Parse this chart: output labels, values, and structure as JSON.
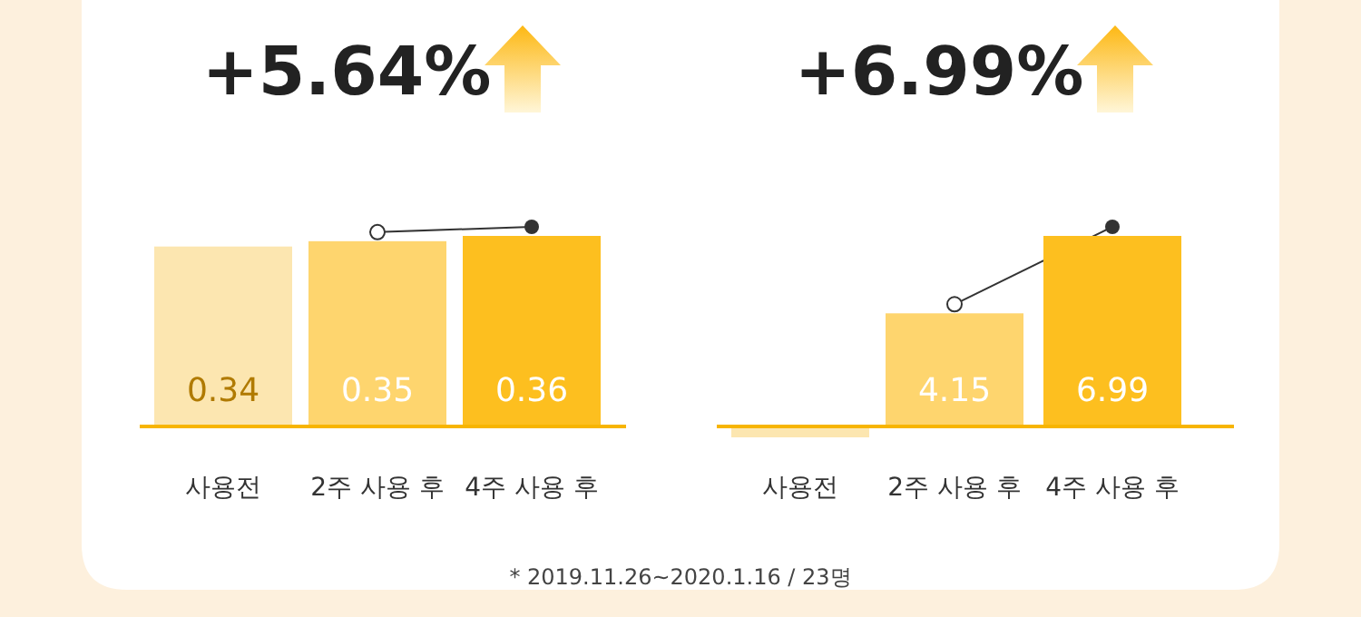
{
  "chart_data": [
    {
      "type": "bar",
      "title": "+5.64%",
      "categories": [
        "사용전",
        "2주 사용 후",
        "4주 사용 후"
      ],
      "values": [
        0.34,
        0.35,
        0.36
      ],
      "colors": [
        "#fce6b0",
        "#fed56e",
        "#fdbf1f"
      ],
      "data_labels": true
    },
    {
      "type": "bar",
      "title": "+6.99%",
      "categories": [
        "사용전",
        "2주 사용 후",
        "4주 사용 후"
      ],
      "values": [
        0,
        4.15,
        6.99
      ],
      "colors": [
        "#fce6b0",
        "#fed56e",
        "#fdbf1f"
      ],
      "value_labels": [
        null,
        "4.15",
        "6.99"
      ],
      "annotations": [
        "* 2019.11.26~2020.1.16 / 23명"
      ]
    }
  ]
}
